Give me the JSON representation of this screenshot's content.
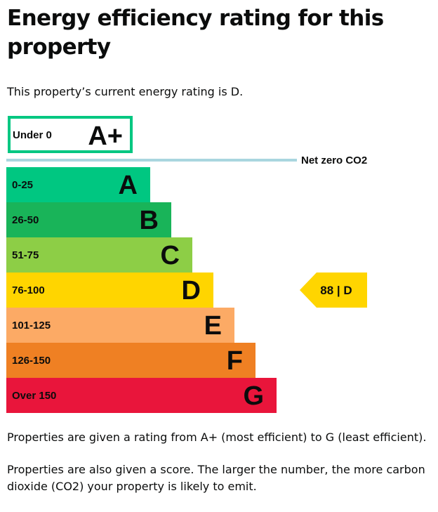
{
  "page": {
    "title": "Energy efficiency rating for this property",
    "intro": "This property’s current energy rating is D.",
    "note_1": "Properties are given a rating from A+ (most efficient) to G (least efficient).",
    "note_2": "Properties are also given a score. The larger the number, the more carbon dioxide (CO2) your property is likely to emit."
  },
  "chart_data": {
    "type": "bar",
    "bands": [
      {
        "letter": "A+",
        "range": "Under 0",
        "color": "#ffffff",
        "border": "#00c781"
      },
      {
        "letter": "A",
        "range": "0-25",
        "color": "#00c781"
      },
      {
        "letter": "B",
        "range": "26-50",
        "color": "#19b459"
      },
      {
        "letter": "C",
        "range": "51-75",
        "color": "#8dce46"
      },
      {
        "letter": "D",
        "range": "76-100",
        "color": "#ffd500"
      },
      {
        "letter": "E",
        "range": "101-125",
        "color": "#fcaa65"
      },
      {
        "letter": "F",
        "range": "126-150",
        "color": "#ef8023"
      },
      {
        "letter": "G",
        "range": "Over 150",
        "color": "#e9153b"
      }
    ],
    "reference_line": {
      "label": "Net zero CO2",
      "color": "#a9d6df"
    },
    "current": {
      "score": 88,
      "letter": "D",
      "label": "88 | D",
      "color": "#ffd500"
    }
  }
}
